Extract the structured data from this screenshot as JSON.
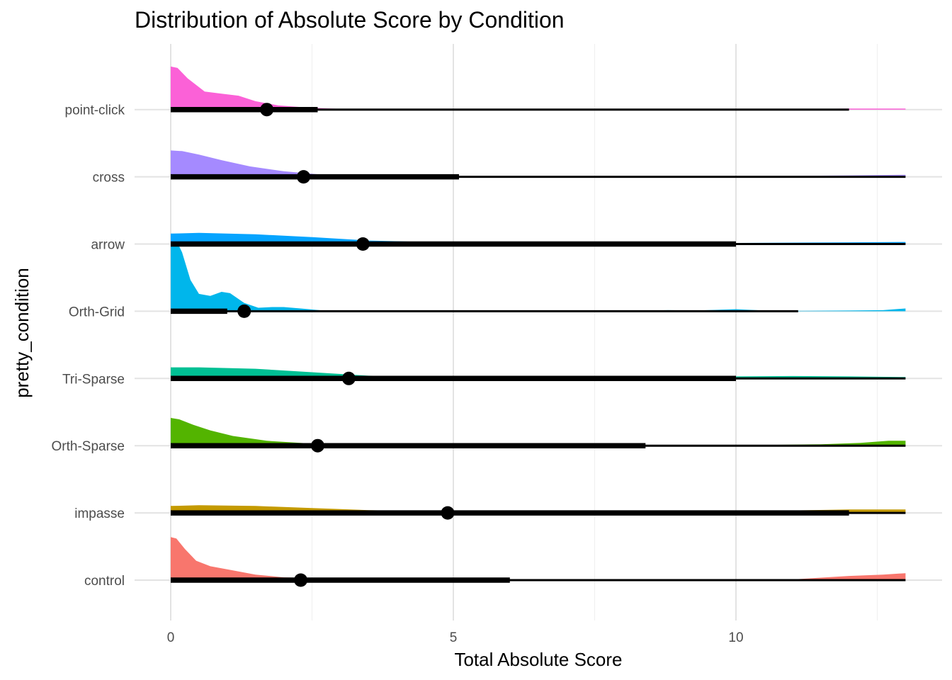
{
  "chart_data": {
    "type": "halfeye",
    "title": "Distribution of Absolute Score by Condition",
    "xlabel": "Total Absolute Score",
    "ylabel": "pretty_condition",
    "xlim": [
      -0.25,
      13.6
    ],
    "x_ticks": [
      0,
      5,
      10
    ],
    "x_minor_ticks": [
      2.5,
      7.5,
      12.5
    ],
    "grid": true,
    "legend": "none",
    "series": [
      {
        "name": "control",
        "color": "#F8766D",
        "point": 2.3,
        "interval_thick": [
          0,
          6
        ],
        "interval_thin": [
          0,
          13
        ],
        "density": [
          [
            0,
            0.62
          ],
          [
            0.1,
            0.6
          ],
          [
            0.25,
            0.45
          ],
          [
            0.45,
            0.28
          ],
          [
            0.7,
            0.2
          ],
          [
            1.1,
            0.14
          ],
          [
            1.5,
            0.08
          ],
          [
            2,
            0.04
          ],
          [
            3,
            0.015
          ],
          [
            5,
            0.005
          ],
          [
            8,
            0.005
          ],
          [
            11,
            0.01
          ],
          [
            12,
            0.06
          ],
          [
            12.6,
            0.08
          ],
          [
            13,
            0.1
          ]
        ]
      },
      {
        "name": "impasse",
        "color": "#C49A00",
        "point": 4.9,
        "interval_thick": [
          0,
          12
        ],
        "interval_thin": [
          0,
          13
        ],
        "density": [
          [
            0,
            0.1
          ],
          [
            0.5,
            0.11
          ],
          [
            1.5,
            0.1
          ],
          [
            2.5,
            0.07
          ],
          [
            3.5,
            0.04
          ],
          [
            5,
            0.015
          ],
          [
            8,
            0.01
          ],
          [
            10,
            0.02
          ],
          [
            12,
            0.05
          ],
          [
            13,
            0.05
          ]
        ]
      },
      {
        "name": "Orth-Sparse",
        "color": "#53B400",
        "point": 2.6,
        "interval_thick": [
          0,
          8.4
        ],
        "interval_thin": [
          0,
          13
        ],
        "density": [
          [
            0,
            0.4
          ],
          [
            0.15,
            0.38
          ],
          [
            0.4,
            0.3
          ],
          [
            0.7,
            0.22
          ],
          [
            1.1,
            0.14
          ],
          [
            1.7,
            0.07
          ],
          [
            2.5,
            0.03
          ],
          [
            4,
            0.01
          ],
          [
            6,
            0.005
          ],
          [
            9,
            0.005
          ],
          [
            10.5,
            0.01
          ],
          [
            11.5,
            0.02
          ],
          [
            12.2,
            0.04
          ],
          [
            12.7,
            0.07
          ],
          [
            13,
            0.07
          ]
        ]
      },
      {
        "name": "Tri-Sparse",
        "color": "#00C094",
        "point": 3.15,
        "interval_thick": [
          0,
          10
        ],
        "interval_thin": [
          0,
          13
        ],
        "density": [
          [
            0,
            0.16
          ],
          [
            0.5,
            0.16
          ],
          [
            1.5,
            0.14
          ],
          [
            2.5,
            0.09
          ],
          [
            3.5,
            0.04
          ],
          [
            5,
            0.015
          ],
          [
            8,
            0.01
          ],
          [
            10,
            0.03
          ],
          [
            11,
            0.035
          ],
          [
            12,
            0.03
          ],
          [
            13,
            0.02
          ]
        ]
      },
      {
        "name": "Orth-Grid",
        "color": "#00B6EB",
        "point": 1.3,
        "interval_thick": [
          0,
          1
        ],
        "interval_thin": [
          0,
          11.1
        ],
        "density": [
          [
            0,
            1.0
          ],
          [
            0.08,
            1.05
          ],
          [
            0.2,
            0.85
          ],
          [
            0.35,
            0.45
          ],
          [
            0.5,
            0.25
          ],
          [
            0.7,
            0.22
          ],
          [
            0.9,
            0.28
          ],
          [
            1.05,
            0.26
          ],
          [
            1.3,
            0.12
          ],
          [
            1.55,
            0.05
          ],
          [
            1.8,
            0.06
          ],
          [
            2,
            0.06
          ],
          [
            2.3,
            0.04
          ],
          [
            2.7,
            0.01
          ],
          [
            4,
            0.003
          ],
          [
            8,
            0.003
          ],
          [
            8.8,
            0.015
          ],
          [
            9.3,
            0.01
          ],
          [
            10,
            0.03
          ],
          [
            10.5,
            0.01
          ],
          [
            11,
            0.005
          ],
          [
            12,
            0.01
          ],
          [
            12.6,
            0.015
          ],
          [
            13,
            0.04
          ]
        ]
      },
      {
        "name": "arrow",
        "color": "#06A4FF",
        "point": 3.4,
        "interval_thick": [
          0,
          10
        ],
        "interval_thin": [
          0,
          13
        ],
        "density": [
          [
            0,
            0.15
          ],
          [
            0.5,
            0.16
          ],
          [
            1.5,
            0.14
          ],
          [
            2.5,
            0.1
          ],
          [
            3.5,
            0.05
          ],
          [
            5,
            0.02
          ],
          [
            7,
            0.01
          ],
          [
            10,
            0.015
          ],
          [
            12,
            0.025
          ],
          [
            13,
            0.03
          ]
        ]
      },
      {
        "name": "cross",
        "color": "#A58AFF",
        "point": 2.35,
        "interval_thick": [
          0,
          5.1
        ],
        "interval_thin": [
          0,
          13
        ],
        "density": [
          [
            0,
            0.38
          ],
          [
            0.2,
            0.37
          ],
          [
            0.5,
            0.32
          ],
          [
            0.9,
            0.24
          ],
          [
            1.4,
            0.15
          ],
          [
            2,
            0.08
          ],
          [
            2.7,
            0.03
          ],
          [
            4,
            0.01
          ],
          [
            6,
            0.005
          ],
          [
            10,
            0.005
          ],
          [
            12,
            0.02
          ],
          [
            13,
            0.03
          ]
        ]
      },
      {
        "name": "point-click",
        "color": "#FB61D7",
        "point": 1.7,
        "interval_thick": [
          0,
          2.6
        ],
        "interval_thin": [
          0,
          12
        ],
        "density": [
          [
            0,
            0.62
          ],
          [
            0.12,
            0.6
          ],
          [
            0.3,
            0.45
          ],
          [
            0.6,
            0.26
          ],
          [
            0.9,
            0.23
          ],
          [
            1.2,
            0.2
          ],
          [
            1.5,
            0.12
          ],
          [
            1.9,
            0.06
          ],
          [
            2.4,
            0.03
          ],
          [
            3,
            0.01
          ],
          [
            4,
            0.005
          ],
          [
            5,
            0.01
          ],
          [
            6,
            0.003
          ],
          [
            10,
            0.003
          ],
          [
            11,
            0.005
          ],
          [
            12,
            0.015
          ],
          [
            13,
            0.015
          ]
        ]
      }
    ],
    "colors_note": "fill colours follow the plotting library default hue palette"
  }
}
